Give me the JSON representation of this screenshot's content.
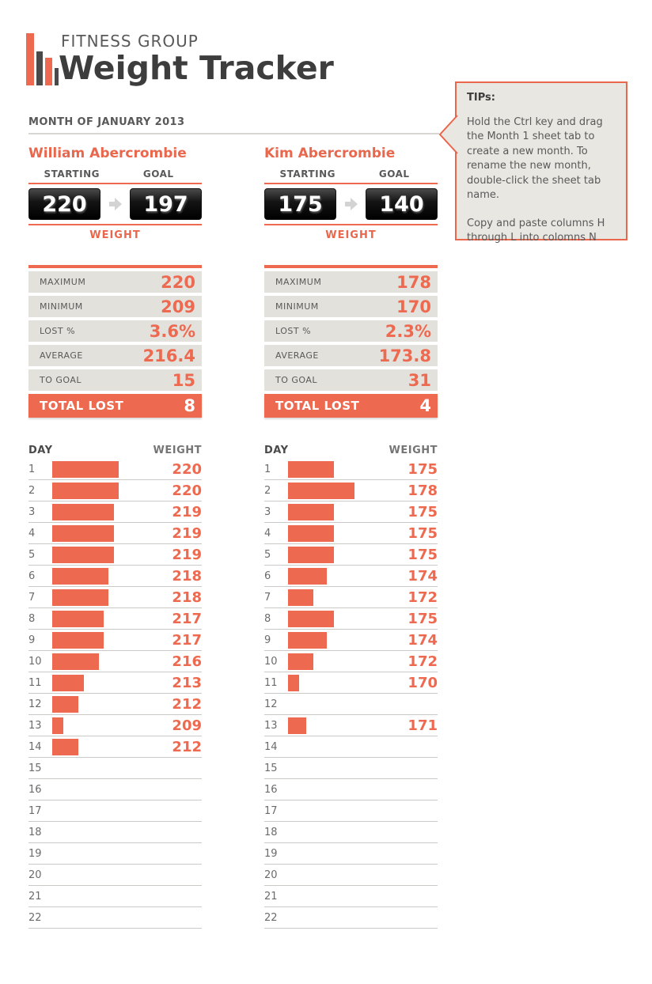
{
  "brand": {
    "group": "FITNESS GROUP",
    "title": "Weight Tracker"
  },
  "month_heading": "MONTH OF JANUARY 2013",
  "tips": {
    "title": "TIPs:",
    "paragraphs": [
      "Hold the Ctrl key and drag the Month 1 sheet tab to create a new month. To rename the new month, double-click the sheet tab name.",
      "Copy and paste columns H through L into colomns N"
    ]
  },
  "labels": {
    "starting": "STARTING",
    "goal": "GOAL",
    "weight": "WEIGHT",
    "day": "DAY",
    "weight_col": "WEIGHT",
    "total_lost": "TOTAL LOST"
  },
  "colors": {
    "accent": "#ed6a50",
    "dark_text": "#3d3d3d",
    "gray_text": "#595959",
    "stat_row_bg": "#e3e1dc",
    "tips_bg": "#e9e7e2",
    "display_bg": "#000000",
    "separator": "#cbc9c5"
  },
  "people": [
    {
      "name": "William Abercrombie",
      "starting": "220",
      "goal": "197",
      "stats": [
        {
          "label": "MAXIMUM",
          "value": "220"
        },
        {
          "label": "MINIMUM",
          "value": "209"
        },
        {
          "label": "LOST %",
          "value": "3.6%"
        },
        {
          "label": "AVERAGE",
          "value": "216.4"
        },
        {
          "label": "TO GOAL",
          "value": "15"
        }
      ],
      "total_lost": "8",
      "days": [
        220,
        220,
        219,
        219,
        219,
        218,
        218,
        217,
        217,
        216,
        213,
        212,
        209,
        212,
        null,
        null,
        null,
        null,
        null,
        null,
        null,
        null
      ]
    },
    {
      "name": "Kim Abercrombie",
      "starting": "175",
      "goal": "140",
      "stats": [
        {
          "label": "MAXIMUM",
          "value": "178"
        },
        {
          "label": "MINIMUM",
          "value": "170"
        },
        {
          "label": "LOST %",
          "value": "2.3%"
        },
        {
          "label": "AVERAGE",
          "value": "173.8"
        },
        {
          "label": "TO GOAL",
          "value": "31"
        }
      ],
      "total_lost": "4",
      "days": [
        175,
        178,
        175,
        175,
        175,
        174,
        172,
        175,
        174,
        172,
        170,
        null,
        171,
        null,
        null,
        null,
        null,
        null,
        null,
        null,
        null,
        null
      ]
    }
  ],
  "chart_data": [
    {
      "type": "bar",
      "title": "William Abercrombie",
      "xlabel": "DAY",
      "ylabel": "WEIGHT",
      "categories": [
        1,
        2,
        3,
        4,
        5,
        6,
        7,
        8,
        9,
        10,
        11,
        12,
        13,
        14
      ],
      "values": [
        220,
        220,
        219,
        219,
        219,
        218,
        218,
        217,
        217,
        216,
        213,
        212,
        209,
        212
      ]
    },
    {
      "type": "bar",
      "title": "Kim Abercrombie",
      "xlabel": "DAY",
      "ylabel": "WEIGHT",
      "categories": [
        1,
        2,
        3,
        4,
        5,
        6,
        7,
        8,
        9,
        10,
        11,
        12,
        13
      ],
      "values": [
        175,
        178,
        175,
        175,
        175,
        174,
        172,
        175,
        174,
        172,
        170,
        null,
        171
      ]
    }
  ]
}
